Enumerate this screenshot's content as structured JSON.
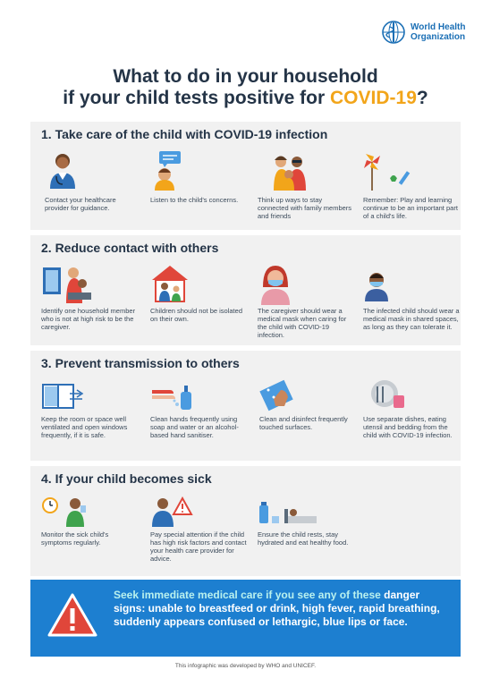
{
  "org": {
    "line1": "World Health",
    "line2": "Organization"
  },
  "title": {
    "line1": "What to do in your household",
    "line2_pre": "if your child tests positive for ",
    "line2_hl": "COVID-19",
    "line2_post": "?"
  },
  "sections": [
    {
      "title": "1. Take care of the child with COVID-19 infection",
      "items": [
        {
          "icon": "doctor-icon",
          "text": "Contact your healthcare provider for guidance."
        },
        {
          "icon": "child-speech-icon",
          "text": "Listen to the child's concerns."
        },
        {
          "icon": "family-icon",
          "text": "Think up ways to stay connected with family members and friends"
        },
        {
          "icon": "play-icon",
          "text": "Remember: Play and learning continue to be an important part of a child's life."
        }
      ]
    },
    {
      "title": "2. Reduce contact with others",
      "items": [
        {
          "icon": "caregiver-icon",
          "text": "Identify one household member who is not at high risk to be the caregiver."
        },
        {
          "icon": "house-icon",
          "text": "Children should not be isolated on their own."
        },
        {
          "icon": "masked-woman-icon",
          "text": "The caregiver should wear a medical mask when caring for the child with COVID-19 infection."
        },
        {
          "icon": "masked-child-icon",
          "text": "The infected child should wear a medical mask in shared spaces, as long as they can tolerate it."
        }
      ]
    },
    {
      "title": "3. Prevent transmission to others",
      "items": [
        {
          "icon": "window-icon",
          "text": "Keep the room or space well ventilated and open windows frequently, if it is safe."
        },
        {
          "icon": "handwash-icon",
          "text": "Clean hands frequently using soap and water or an alcohol-based hand sanitiser."
        },
        {
          "icon": "disinfect-icon",
          "text": "Clean and disinfect frequently touched surfaces."
        },
        {
          "icon": "dishes-icon",
          "text": "Use separate dishes, eating utensil and bedding from the child with COVID-19 infection."
        }
      ]
    },
    {
      "title": "4. If your child becomes sick",
      "items": [
        {
          "icon": "monitor-child-icon",
          "text": "Monitor the sick child's symptoms regularly."
        },
        {
          "icon": "doctor-warning-icon",
          "text": "Pay special attention if the child has high risk factors and contact your health care provider for advice."
        },
        {
          "icon": "rest-icon",
          "text": "Ensure the child rests, stay hydrated and eat healthy food."
        }
      ]
    }
  ],
  "alert": {
    "lead": "Seek immediate medical care if you see any of these",
    "rest": "danger signs: unable to breastfeed or drink, high fever, rapid breathing, suddenly appears confused or lethargic, blue lips or face."
  },
  "footer": "This infographic was developed by WHO and UNICEF.",
  "colors": {
    "section_bg": "#f1f1f1",
    "alert_bg": "#1d7fd0",
    "accent": "#f2a51a",
    "who_blue": "#1b6fb5"
  }
}
